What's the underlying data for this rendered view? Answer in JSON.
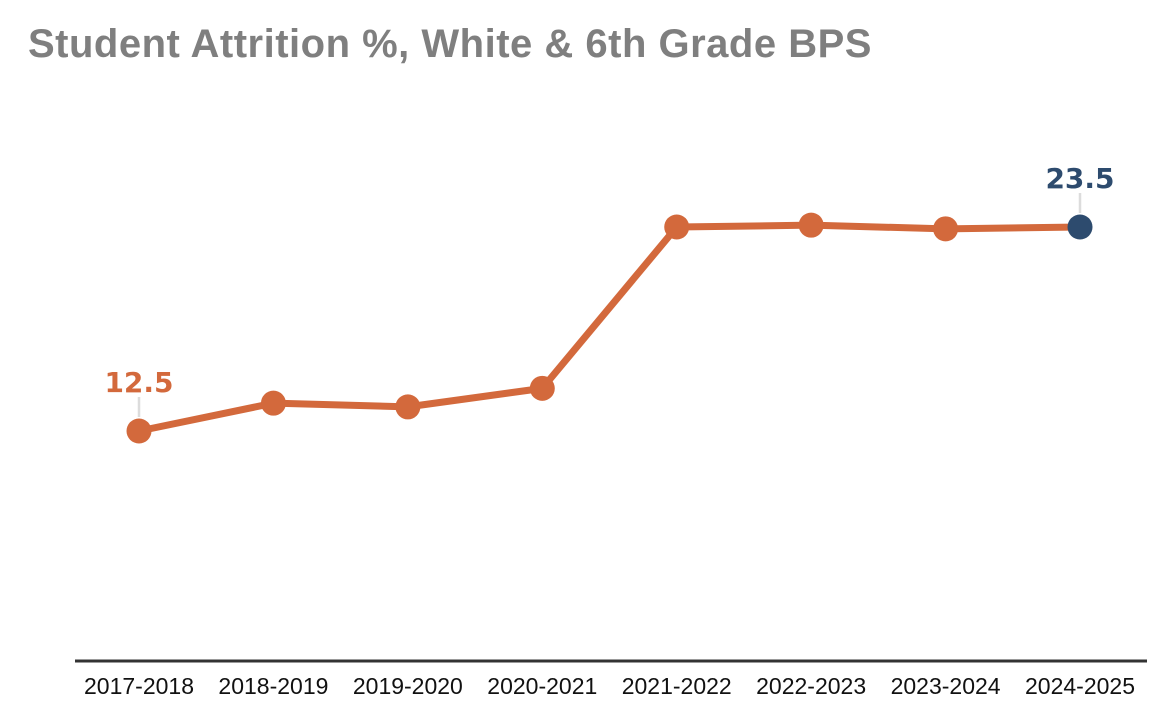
{
  "header": {
    "title": "Student Attrition %, White & 6th Grade BPS"
  },
  "chart_data": {
    "type": "line",
    "title": "Student Attrition %, White & 6th Grade BPS",
    "categories": [
      "2017-2018",
      "2018-2019",
      "2019-2020",
      "2020-2021",
      "2021-2022",
      "2022-2023",
      "2023-2024",
      "2024-2025"
    ],
    "values": [
      12.5,
      14.0,
      13.8,
      14.8,
      23.5,
      23.6,
      23.4,
      23.5
    ],
    "point_labels": [
      "12.5",
      "",
      "",
      "",
      "",
      "",
      "",
      "23.5"
    ],
    "xlabel": "",
    "ylabel": "",
    "ylim": [
      11,
      26
    ],
    "grid": false,
    "legend": false,
    "colors": {
      "title": "#7F7F7F",
      "line": "#D3693C",
      "points": [
        "#D3693C",
        "#D3693C",
        "#D3693C",
        "#D3693C",
        "#D3693C",
        "#D3693C",
        "#D3693C",
        "#2D4B6E"
      ],
      "axis_line": "#333333",
      "tick_labels": "#111111",
      "leader_line": "#DCDCDC"
    }
  }
}
